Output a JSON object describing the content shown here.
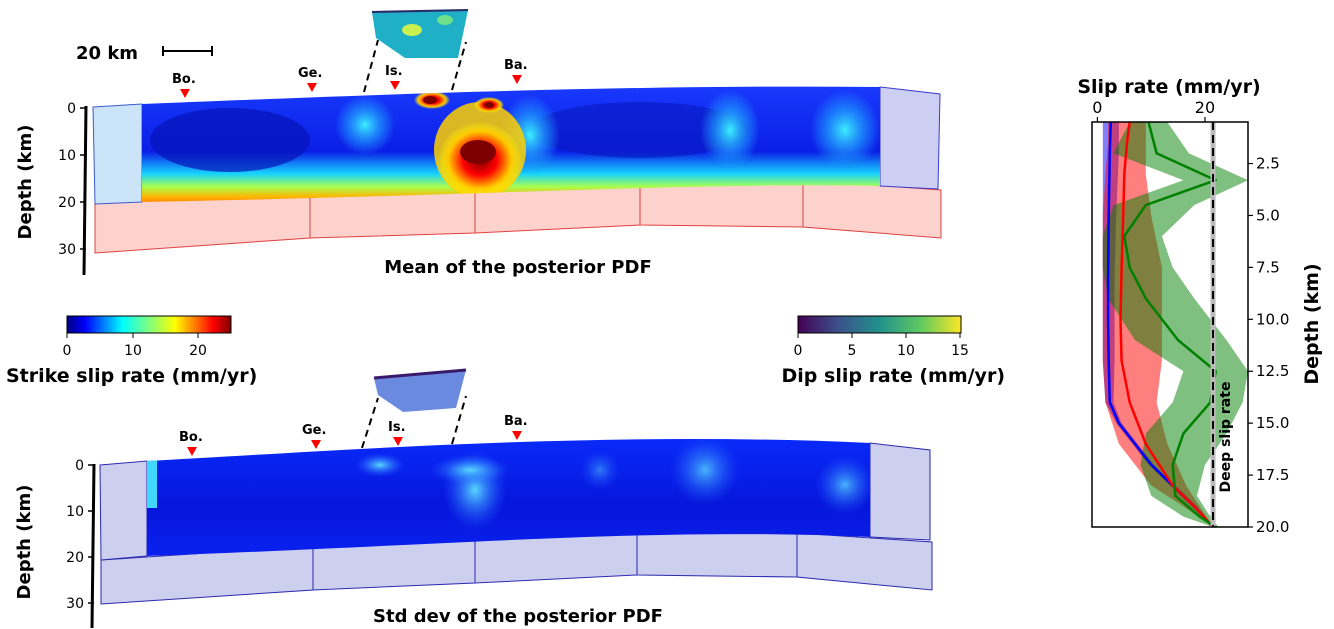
{
  "chart_data": [
    {
      "type": "heatmap",
      "title": "Mean of the posterior PDF",
      "ylabel": "Depth (km)",
      "ytick_labels": [
        "0",
        "10",
        "20",
        "30"
      ],
      "ylim": [
        0,
        30
      ],
      "markers": [
        "Bo.",
        "Ge.",
        "Is.",
        "Ba."
      ],
      "scale_bar": "20 km",
      "colormap": "jet",
      "note": "strike slip rate distribution on fault; high values near Is. at shallow and ~10 km depth"
    },
    {
      "type": "heatmap",
      "title": "Std dev of the posterior PDF",
      "ylabel": "Depth (km)",
      "ytick_labels": [
        "0",
        "10",
        "20",
        "30"
      ],
      "ylim": [
        0,
        30
      ],
      "markers": [
        "Bo.",
        "Ge.",
        "Is.",
        "Ba."
      ],
      "colormap": "jet"
    },
    {
      "type": "colorbar",
      "label": "Strike slip rate (mm/yr)",
      "ticks": [
        "0",
        "10",
        "20"
      ],
      "range": [
        0,
        25
      ],
      "colormap": "jet"
    },
    {
      "type": "colorbar",
      "label": "Dip slip rate (mm/yr)",
      "ticks": [
        "0",
        "5",
        "10",
        "15"
      ],
      "range": [
        0,
        15
      ],
      "colormap": "viridis"
    },
    {
      "type": "line",
      "title": "Slip rate (mm/yr)",
      "ylabel": "Depth (km)",
      "xlim": [
        -1,
        28
      ],
      "ylim": [
        0.5,
        20
      ],
      "x_tick_labels": [
        "0",
        "20"
      ],
      "x_ticks": [
        0,
        20
      ],
      "y_ticks": [
        2.5,
        5.0,
        7.5,
        10.0,
        12.5,
        15.0,
        17.5,
        20.0
      ],
      "y_tick_labels": [
        "2.5",
        "5.0",
        "7.5",
        "10.0",
        "12.5",
        "15.0",
        "17.5",
        "20.0"
      ],
      "reference_line": {
        "label": "Deep slip rate",
        "x": 21.5
      },
      "series": [
        {
          "color": "#0000ff",
          "depth": [
            0.5,
            2,
            5,
            8,
            10,
            12,
            14,
            15,
            16,
            17,
            18,
            19,
            20
          ],
          "value": [
            2.5,
            2.3,
            2.1,
            2.0,
            2.0,
            2.1,
            2.3,
            4,
            7,
            10,
            14,
            18,
            21.5
          ],
          "band_low": [
            1,
            1,
            1,
            1,
            1,
            1,
            1.5,
            3.5,
            6.5,
            9.5,
            13.5,
            17.5,
            21.5
          ],
          "band_high": [
            4,
            4,
            3.5,
            3.2,
            3.2,
            3.2,
            3,
            4.5,
            7.5,
            10.5,
            14.5,
            18.5,
            21.5
          ]
        },
        {
          "color": "#ff0000",
          "depth": [
            0.5,
            1.5,
            3,
            5,
            7.5,
            10,
            12,
            14,
            16,
            18,
            19,
            20
          ],
          "value": [
            6,
            5.5,
            5,
            4.8,
            4.5,
            4.3,
            4.5,
            6,
            9,
            14,
            18,
            21.5
          ],
          "band_low": [
            2,
            2,
            1.5,
            1,
            1,
            1,
            1,
            1.5,
            4,
            10,
            16,
            21.5
          ],
          "band_high": [
            9,
            9,
            9,
            10,
            12,
            12,
            12,
            11,
            13,
            16.5,
            19,
            21.5
          ]
        },
        {
          "color": "#008000",
          "depth": [
            0.5,
            2,
            3.3,
            4.5,
            6,
            7.5,
            9,
            11,
            12.5,
            14,
            15.5,
            17,
            18.5,
            19.5,
            20
          ],
          "value": [
            9.5,
            11,
            22,
            9,
            5,
            6,
            9,
            15,
            22,
            21,
            16,
            14,
            14.5,
            19,
            22
          ],
          "band_low": [
            6,
            3,
            16,
            3,
            1,
            1,
            2,
            7,
            16,
            14,
            9,
            8,
            10,
            16,
            21.5
          ],
          "band_high": [
            13,
            17,
            28,
            18,
            12,
            14,
            18,
            24,
            28,
            27,
            24,
            20,
            18.5,
            21,
            22.5
          ]
        }
      ]
    }
  ]
}
